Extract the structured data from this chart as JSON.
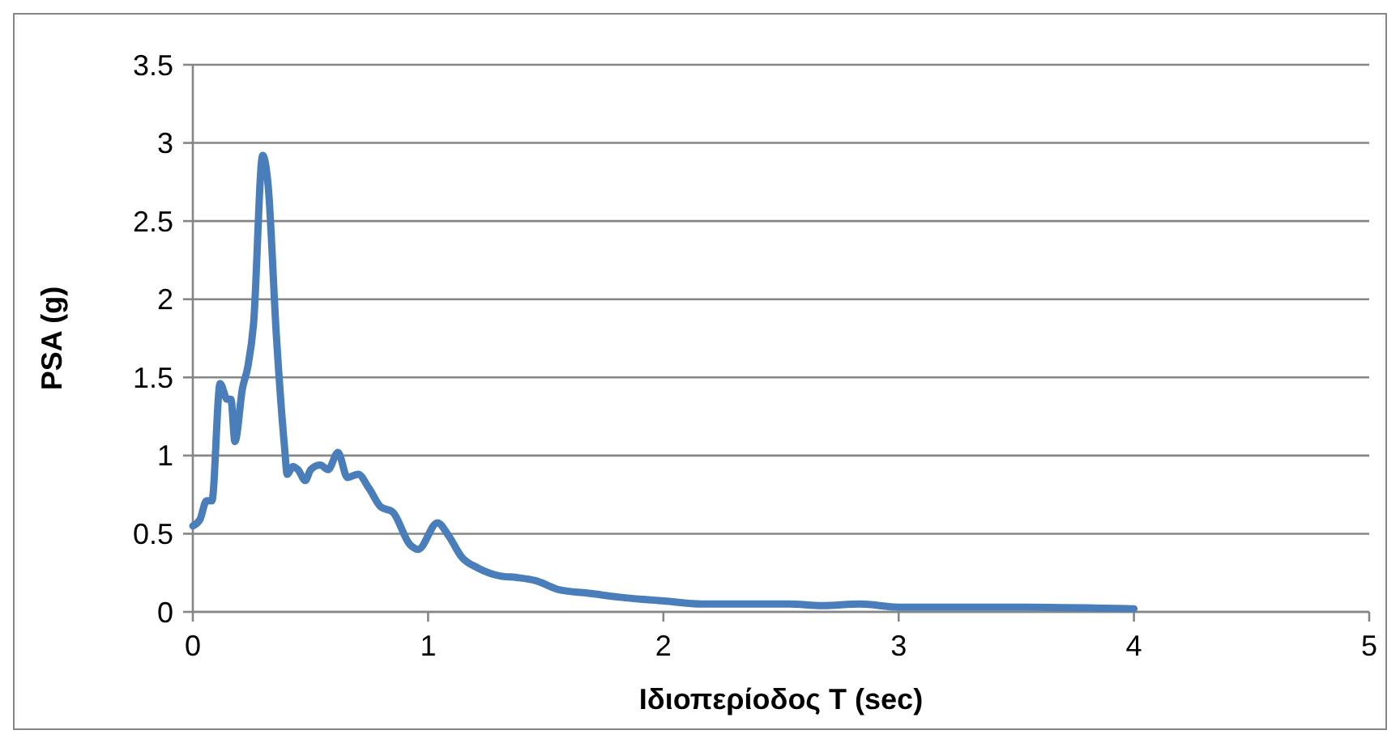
{
  "chart_data": {
    "type": "line",
    "xlabel": "Ιδιοπερίοδος T (sec)",
    "ylabel": "PSA (g)",
    "xlim": [
      0,
      5
    ],
    "xticks": [
      0,
      1,
      2,
      3,
      4,
      5
    ],
    "ylim": [
      0,
      3.5
    ],
    "yticks": [
      0,
      0.5,
      1,
      1.5,
      2,
      2.5,
      3,
      3.5
    ],
    "grid": "y",
    "marker": "none",
    "line_style": "solid",
    "series": [
      {
        "color": "#4a7ebb",
        "x": [
          0,
          0.03,
          0.058,
          0.081,
          0.116,
          0.146,
          0.162,
          0.179,
          0.211,
          0.234,
          0.258,
          0.297,
          0.32,
          0.355,
          0.39,
          0.401,
          0.425,
          0.447,
          0.478,
          0.501,
          0.541,
          0.575,
          0.617,
          0.657,
          0.703,
          0.749,
          0.8,
          0.849,
          0.923,
          0.958,
          1.04,
          1.086,
          1.143,
          1.213,
          1.306,
          1.376,
          1.457,
          1.561,
          1.677,
          1.839,
          2.002,
          2.164,
          2.535,
          2.674,
          2.837,
          3.0,
          3.5,
          4.0
        ],
        "values": [
          0.55,
          0.59,
          0.71,
          0.71,
          1.46,
          1.36,
          1.36,
          1.09,
          1.43,
          1.57,
          1.84,
          2.92,
          2.73,
          1.77,
          1.05,
          0.88,
          0.93,
          0.91,
          0.84,
          0.91,
          0.94,
          0.91,
          1.02,
          0.86,
          0.88,
          0.79,
          0.67,
          0.64,
          0.43,
          0.4,
          0.57,
          0.49,
          0.35,
          0.28,
          0.23,
          0.22,
          0.2,
          0.14,
          0.12,
          0.09,
          0.07,
          0.05,
          0.05,
          0.04,
          0.05,
          0.03,
          0.03,
          0.02
        ]
      }
    ]
  }
}
